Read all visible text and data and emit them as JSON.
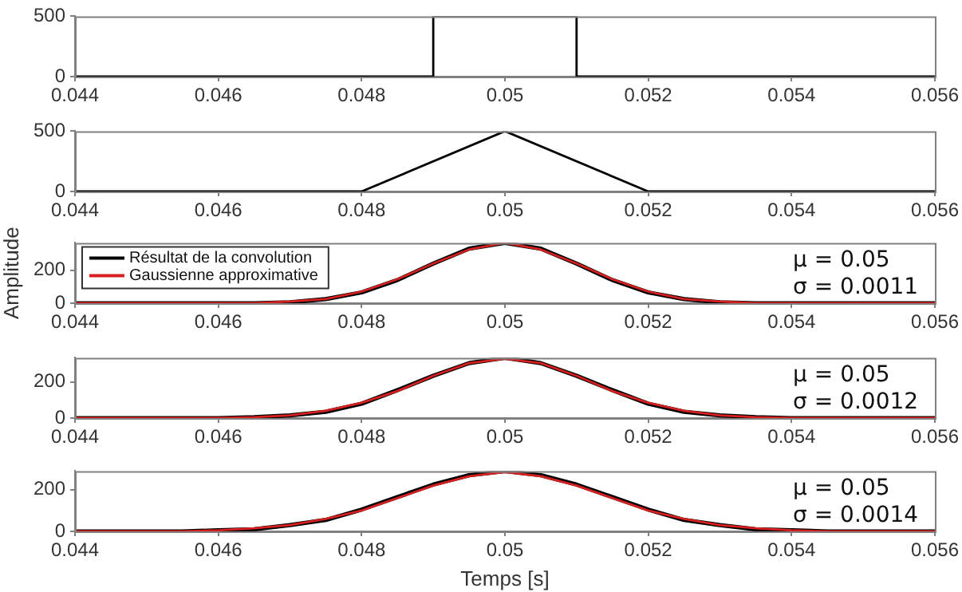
{
  "chart_data": [
    {
      "type": "line",
      "xlim": [
        0.044,
        0.056
      ],
      "xticks": [
        0.044,
        0.046,
        0.048,
        0.05,
        0.052,
        0.054,
        0.056
      ],
      "ylim": [
        0,
        500
      ],
      "yticks": [
        0,
        500
      ],
      "grid": false,
      "legend": false,
      "series": [
        {
          "color": "#000000",
          "x": [
            0.044,
            0.049,
            0.049,
            0.051,
            0.051,
            0.056
          ],
          "values": [
            0,
            0,
            500,
            500,
            0,
            0
          ]
        }
      ]
    },
    {
      "type": "line",
      "xlim": [
        0.044,
        0.056
      ],
      "xticks": [
        0.044,
        0.046,
        0.048,
        0.05,
        0.052,
        0.054,
        0.056
      ],
      "ylim": [
        0,
        500
      ],
      "yticks": [
        0,
        500
      ],
      "grid": false,
      "legend": false,
      "series": [
        {
          "color": "#000000",
          "x": [
            0.044,
            0.048,
            0.05,
            0.052,
            0.056
          ],
          "values": [
            0,
            0,
            500,
            0,
            0
          ]
        }
      ]
    },
    {
      "type": "line",
      "ylabel": "Amplitude",
      "annotations": [
        "μ = 0.05",
        "σ = 0.0011"
      ],
      "xlim": [
        0.044,
        0.056
      ],
      "xticks": [
        0.044,
        0.046,
        0.048,
        0.05,
        0.052,
        0.054,
        0.056
      ],
      "ylim": [
        0,
        365
      ],
      "yticks": [
        0,
        200
      ],
      "grid": false,
      "legend": "top left",
      "x": [
        0.044,
        0.0445,
        0.045,
        0.0455,
        0.046,
        0.0465,
        0.047,
        0.0475,
        0.048,
        0.0485,
        0.049,
        0.0495,
        0.05,
        0.0505,
        0.051,
        0.0515,
        0.052,
        0.0525,
        0.053,
        0.0535,
        0.054,
        0.0545,
        0.055,
        0.0555,
        0.056
      ],
      "series": [
        {
          "name": "Résultat de la convolution",
          "color": "#000000",
          "values": [
            0,
            0,
            0,
            0,
            0,
            0,
            5,
            25,
            65,
            140,
            240,
            330,
            365,
            330,
            240,
            140,
            65,
            25,
            5,
            0,
            0,
            0,
            0,
            0,
            0
          ]
        },
        {
          "name": "Gaussienne approximative",
          "color": "#d62020",
          "values": [
            0,
            0,
            0,
            0,
            0,
            0,
            10,
            25,
            70,
            145,
            240,
            325,
            365,
            325,
            240,
            145,
            70,
            25,
            10,
            0,
            0,
            0,
            0,
            0,
            0
          ]
        }
      ]
    },
    {
      "type": "line",
      "annotations": [
        "μ = 0.05",
        "σ = 0.0012"
      ],
      "xlim": [
        0.044,
        0.056
      ],
      "xticks": [
        0.044,
        0.046,
        0.048,
        0.05,
        0.052,
        0.054,
        0.056
      ],
      "ylim": [
        0,
        335
      ],
      "yticks": [
        0,
        200
      ],
      "grid": false,
      "legend": false,
      "x": [
        0.044,
        0.0445,
        0.045,
        0.0455,
        0.046,
        0.0465,
        0.047,
        0.0475,
        0.048,
        0.0485,
        0.049,
        0.0495,
        0.05,
        0.0505,
        0.051,
        0.0515,
        0.052,
        0.0525,
        0.053,
        0.0535,
        0.054,
        0.0545,
        0.055,
        0.0555,
        0.056
      ],
      "series": [
        {
          "color": "#000000",
          "values": [
            0,
            0,
            0,
            0,
            0,
            5,
            15,
            35,
            80,
            155,
            235,
            305,
            335,
            305,
            235,
            155,
            80,
            35,
            15,
            5,
            0,
            0,
            0,
            0,
            0
          ]
        },
        {
          "color": "#d62020",
          "values": [
            0,
            0,
            0,
            0,
            0,
            5,
            15,
            40,
            85,
            150,
            235,
            305,
            330,
            305,
            235,
            150,
            85,
            40,
            15,
            5,
            0,
            0,
            0,
            0,
            0
          ]
        }
      ]
    },
    {
      "type": "line",
      "xlabel": "Temps [s]",
      "annotations": [
        "μ = 0.05",
        "σ = 0.0014"
      ],
      "xlim": [
        0.044,
        0.056
      ],
      "xticks": [
        0.044,
        0.046,
        0.048,
        0.05,
        0.052,
        0.054,
        0.056
      ],
      "ylim": [
        0,
        290
      ],
      "yticks": [
        0,
        200
      ],
      "grid": false,
      "legend": false,
      "x": [
        0.044,
        0.0445,
        0.045,
        0.0455,
        0.046,
        0.0465,
        0.047,
        0.0475,
        0.048,
        0.0485,
        0.049,
        0.0495,
        0.05,
        0.0505,
        0.051,
        0.0515,
        0.052,
        0.0525,
        0.053,
        0.0535,
        0.054,
        0.0545,
        0.055,
        0.0555,
        0.056
      ],
      "series": [
        {
          "color": "#000000",
          "values": [
            0,
            0,
            0,
            0,
            5,
            10,
            30,
            55,
            105,
            165,
            225,
            270,
            290,
            270,
            225,
            165,
            105,
            55,
            30,
            10,
            5,
            0,
            0,
            0,
            0
          ]
        },
        {
          "color": "#d62020",
          "values": [
            0,
            0,
            0,
            0,
            5,
            15,
            30,
            60,
            100,
            160,
            220,
            265,
            285,
            265,
            220,
            160,
            100,
            60,
            30,
            15,
            5,
            0,
            0,
            0,
            0
          ]
        }
      ]
    }
  ]
}
